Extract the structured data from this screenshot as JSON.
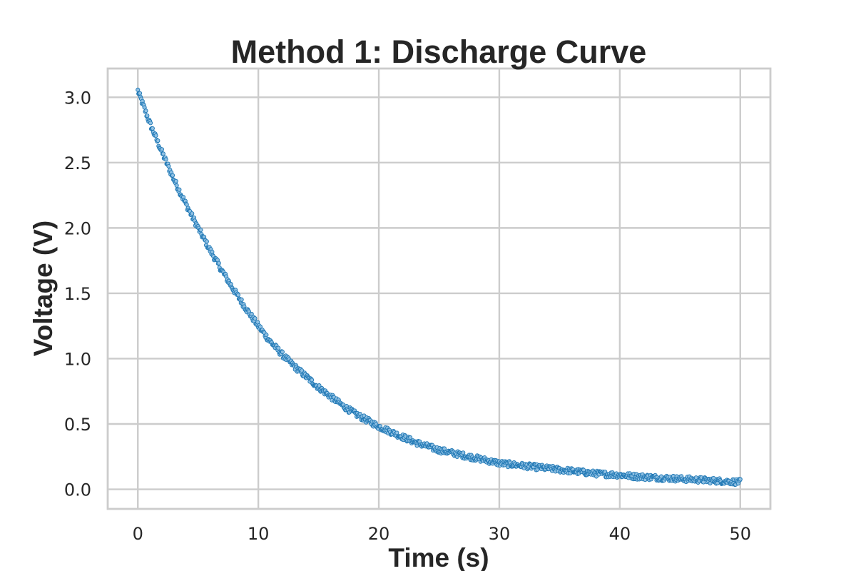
{
  "chart_data": {
    "type": "scatter",
    "title": "Method 1: Discharge Curve",
    "xlabel": "Time (s)",
    "ylabel": "Voltage (V)",
    "xlim": [
      -2.5,
      52.5
    ],
    "ylim": [
      -0.15,
      3.22
    ],
    "xticks": [
      "0",
      "10",
      "20",
      "30",
      "40",
      "50"
    ],
    "yticks": [
      "0.0",
      "0.5",
      "1.0",
      "1.5",
      "2.0",
      "2.5",
      "3.0"
    ],
    "grid": true,
    "legend": "none",
    "series": [
      {
        "color": "#1f77b4",
        "fill_color": "#8fc0e3",
        "x": [
          0,
          1,
          2,
          3,
          4,
          5,
          6,
          7,
          8,
          9,
          10,
          11,
          12,
          13,
          14,
          15,
          16,
          17,
          18,
          19,
          20,
          21,
          22,
          23,
          24,
          25,
          26,
          27,
          28,
          29,
          30,
          31,
          32,
          33,
          34,
          35,
          36,
          37,
          38,
          39,
          40,
          41,
          42,
          43,
          44,
          45,
          46,
          47,
          48,
          49,
          50
        ],
        "values": [
          3.05,
          2.8,
          2.58,
          2.37,
          2.18,
          2.0,
          1.83,
          1.67,
          1.52,
          1.38,
          1.25,
          1.13,
          1.03,
          0.94,
          0.86,
          0.78,
          0.71,
          0.64,
          0.58,
          0.53,
          0.48,
          0.44,
          0.4,
          0.36,
          0.33,
          0.3,
          0.28,
          0.26,
          0.24,
          0.22,
          0.2,
          0.19,
          0.18,
          0.17,
          0.16,
          0.15,
          0.14,
          0.13,
          0.12,
          0.115,
          0.11,
          0.1,
          0.095,
          0.09,
          0.085,
          0.08,
          0.075,
          0.07,
          0.065,
          0.06,
          0.055
        ]
      }
    ]
  }
}
